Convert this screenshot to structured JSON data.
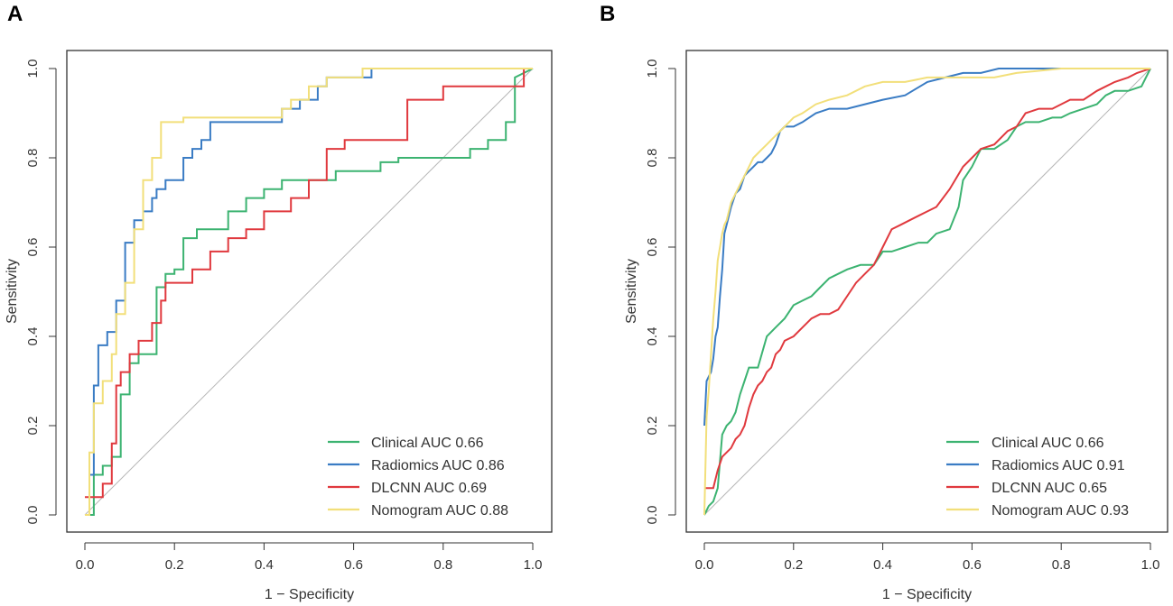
{
  "chart_data": [
    {
      "panel_label": "A",
      "type": "line",
      "title": "",
      "xlabel": "1 − Specificity",
      "ylabel": "Sensitivity",
      "xlim": [
        0,
        1
      ],
      "ylim": [
        0,
        1
      ],
      "xticks": [
        "0.0",
        "0.2",
        "0.4",
        "0.6",
        "0.8",
        "1.0"
      ],
      "yticks": [
        "0.0",
        "0.2",
        "0.4",
        "0.6",
        "0.8",
        "1.0"
      ],
      "grid": false,
      "legend_position": "bottom-right",
      "diagonal_reference": true,
      "series": [
        {
          "name": "Clinical",
          "label": "Clinical AUC 0.66",
          "color": "#3cb371",
          "x": [
            0,
            0.02,
            0.02,
            0.04,
            0.04,
            0.06,
            0.06,
            0.08,
            0.08,
            0.1,
            0.1,
            0.12,
            0.12,
            0.16,
            0.16,
            0.18,
            0.18,
            0.2,
            0.2,
            0.22,
            0.22,
            0.25,
            0.25,
            0.32,
            0.32,
            0.36,
            0.36,
            0.4,
            0.4,
            0.44,
            0.44,
            0.52,
            0.52,
            0.56,
            0.56,
            0.66,
            0.66,
            0.7,
            0.7,
            0.86,
            0.86,
            0.9,
            0.9,
            0.94,
            0.94,
            0.96,
            0.96,
            1.0
          ],
          "y": [
            0,
            0,
            0.09,
            0.09,
            0.11,
            0.11,
            0.13,
            0.13,
            0.27,
            0.27,
            0.34,
            0.34,
            0.36,
            0.36,
            0.51,
            0.51,
            0.54,
            0.54,
            0.55,
            0.55,
            0.62,
            0.62,
            0.64,
            0.64,
            0.68,
            0.68,
            0.71,
            0.71,
            0.73,
            0.73,
            0.75,
            0.75,
            0.75,
            0.75,
            0.77,
            0.77,
            0.79,
            0.79,
            0.8,
            0.8,
            0.82,
            0.82,
            0.84,
            0.84,
            0.88,
            0.88,
            0.98,
            1.0
          ]
        },
        {
          "name": "Radiomics",
          "label": "Radiomics AUC 0.86",
          "color": "#3a7cc4",
          "x": [
            0,
            0.01,
            0.01,
            0.02,
            0.02,
            0.03,
            0.03,
            0.05,
            0.05,
            0.07,
            0.07,
            0.09,
            0.09,
            0.11,
            0.11,
            0.13,
            0.13,
            0.15,
            0.15,
            0.16,
            0.16,
            0.18,
            0.18,
            0.2,
            0.2,
            0.22,
            0.22,
            0.24,
            0.24,
            0.26,
            0.26,
            0.28,
            0.28,
            0.3,
            0.3,
            0.44,
            0.44,
            0.48,
            0.48,
            0.52,
            0.52,
            0.54,
            0.54,
            0.56,
            0.56,
            0.64,
            0.64,
            1.0
          ],
          "y": [
            0,
            0,
            0.09,
            0.09,
            0.29,
            0.29,
            0.38,
            0.38,
            0.41,
            0.41,
            0.48,
            0.48,
            0.61,
            0.61,
            0.66,
            0.66,
            0.68,
            0.68,
            0.71,
            0.71,
            0.73,
            0.73,
            0.75,
            0.75,
            0.75,
            0.75,
            0.8,
            0.8,
            0.82,
            0.82,
            0.84,
            0.84,
            0.88,
            0.88,
            0.88,
            0.88,
            0.91,
            0.91,
            0.93,
            0.93,
            0.96,
            0.96,
            0.98,
            0.98,
            0.98,
            0.98,
            1.0,
            1.0
          ]
        },
        {
          "name": "DLCNN",
          "label": "DLCNN AUC 0.69",
          "color": "#e0393e",
          "x": [
            0,
            0.04,
            0.04,
            0.06,
            0.06,
            0.07,
            0.07,
            0.08,
            0.08,
            0.1,
            0.1,
            0.12,
            0.12,
            0.15,
            0.15,
            0.17,
            0.17,
            0.18,
            0.18,
            0.2,
            0.2,
            0.24,
            0.24,
            0.28,
            0.28,
            0.32,
            0.32,
            0.36,
            0.36,
            0.4,
            0.4,
            0.46,
            0.46,
            0.5,
            0.5,
            0.54,
            0.54,
            0.58,
            0.58,
            0.66,
            0.66,
            0.72,
            0.72,
            0.8,
            0.8,
            0.86,
            0.86,
            0.92,
            0.92,
            0.98,
            0.98,
            1.0
          ],
          "y": [
            0.04,
            0.04,
            0.07,
            0.07,
            0.16,
            0.16,
            0.29,
            0.29,
            0.32,
            0.32,
            0.36,
            0.36,
            0.39,
            0.39,
            0.43,
            0.43,
            0.48,
            0.48,
            0.52,
            0.52,
            0.52,
            0.52,
            0.55,
            0.55,
            0.59,
            0.59,
            0.62,
            0.62,
            0.64,
            0.64,
            0.68,
            0.68,
            0.71,
            0.71,
            0.75,
            0.75,
            0.82,
            0.82,
            0.84,
            0.84,
            0.84,
            0.84,
            0.93,
            0.93,
            0.96,
            0.96,
            0.96,
            0.96,
            0.96,
            0.96,
            1.0,
            1.0
          ]
        },
        {
          "name": "Nomogram",
          "label": "Nomogram AUC 0.88",
          "color": "#f2df7a",
          "x": [
            0,
            0.01,
            0.01,
            0.02,
            0.02,
            0.04,
            0.04,
            0.06,
            0.06,
            0.07,
            0.07,
            0.09,
            0.09,
            0.11,
            0.11,
            0.13,
            0.13,
            0.15,
            0.15,
            0.17,
            0.17,
            0.22,
            0.22,
            0.44,
            0.44,
            0.46,
            0.46,
            0.5,
            0.5,
            0.54,
            0.54,
            0.62,
            0.62,
            1.0
          ],
          "y": [
            0,
            0,
            0.14,
            0.14,
            0.25,
            0.25,
            0.3,
            0.3,
            0.36,
            0.36,
            0.45,
            0.45,
            0.52,
            0.52,
            0.64,
            0.64,
            0.75,
            0.75,
            0.8,
            0.8,
            0.88,
            0.88,
            0.89,
            0.89,
            0.91,
            0.91,
            0.93,
            0.93,
            0.96,
            0.96,
            0.98,
            0.98,
            1.0,
            1.0
          ]
        }
      ]
    },
    {
      "panel_label": "B",
      "type": "line",
      "title": "",
      "xlabel": "1 − Specificity",
      "ylabel": "Sensitivity",
      "xlim": [
        0,
        1
      ],
      "ylim": [
        0,
        1
      ],
      "xticks": [
        "0.0",
        "0.2",
        "0.4",
        "0.6",
        "0.8",
        "1.0"
      ],
      "yticks": [
        "0.0",
        "0.2",
        "0.4",
        "0.6",
        "0.8",
        "1.0"
      ],
      "grid": false,
      "legend_position": "bottom-right",
      "diagonal_reference": true,
      "series": [
        {
          "name": "Clinical",
          "label": "Clinical AUC 0.66",
          "color": "#3cb371",
          "x": [
            0,
            0.01,
            0.02,
            0.03,
            0.04,
            0.05,
            0.06,
            0.07,
            0.08,
            0.09,
            0.1,
            0.12,
            0.14,
            0.16,
            0.18,
            0.2,
            0.22,
            0.24,
            0.26,
            0.28,
            0.3,
            0.32,
            0.35,
            0.38,
            0.4,
            0.42,
            0.45,
            0.48,
            0.5,
            0.52,
            0.55,
            0.57,
            0.58,
            0.6,
            0.62,
            0.65,
            0.68,
            0.7,
            0.72,
            0.75,
            0.78,
            0.8,
            0.82,
            0.85,
            0.88,
            0.9,
            0.92,
            0.95,
            0.98,
            1.0
          ],
          "y": [
            0,
            0.02,
            0.03,
            0.06,
            0.18,
            0.2,
            0.21,
            0.23,
            0.27,
            0.3,
            0.33,
            0.33,
            0.4,
            0.42,
            0.44,
            0.47,
            0.48,
            0.49,
            0.51,
            0.53,
            0.54,
            0.55,
            0.56,
            0.56,
            0.59,
            0.59,
            0.6,
            0.61,
            0.61,
            0.63,
            0.64,
            0.69,
            0.75,
            0.78,
            0.82,
            0.82,
            0.84,
            0.87,
            0.88,
            0.88,
            0.89,
            0.89,
            0.9,
            0.91,
            0.92,
            0.94,
            0.95,
            0.95,
            0.96,
            1.0
          ]
        },
        {
          "name": "Radiomics",
          "label": "Radiomics AUC 0.91",
          "color": "#3a7cc4",
          "x": [
            0,
            0.005,
            0.01,
            0.015,
            0.02,
            0.025,
            0.03,
            0.035,
            0.04,
            0.045,
            0.05,
            0.06,
            0.07,
            0.08,
            0.09,
            0.1,
            0.11,
            0.12,
            0.13,
            0.14,
            0.15,
            0.16,
            0.17,
            0.18,
            0.2,
            0.22,
            0.25,
            0.28,
            0.32,
            0.36,
            0.4,
            0.45,
            0.5,
            0.54,
            0.58,
            0.62,
            0.66,
            0.7,
            0.8,
            1.0
          ],
          "y": [
            0.2,
            0.3,
            0.31,
            0.32,
            0.35,
            0.4,
            0.42,
            0.49,
            0.55,
            0.63,
            0.65,
            0.69,
            0.72,
            0.73,
            0.76,
            0.77,
            0.78,
            0.79,
            0.79,
            0.8,
            0.81,
            0.83,
            0.86,
            0.87,
            0.87,
            0.88,
            0.9,
            0.91,
            0.91,
            0.92,
            0.93,
            0.94,
            0.97,
            0.98,
            0.99,
            0.99,
            1.0,
            1.0,
            1.0,
            1.0
          ]
        },
        {
          "name": "DLCNN",
          "label": "DLCNN AUC 0.65",
          "color": "#e0393e",
          "x": [
            0,
            0.02,
            0.03,
            0.04,
            0.05,
            0.06,
            0.07,
            0.08,
            0.09,
            0.1,
            0.11,
            0.12,
            0.13,
            0.14,
            0.15,
            0.16,
            0.17,
            0.18,
            0.2,
            0.22,
            0.24,
            0.26,
            0.28,
            0.3,
            0.32,
            0.34,
            0.36,
            0.38,
            0.4,
            0.42,
            0.44,
            0.46,
            0.48,
            0.5,
            0.52,
            0.55,
            0.58,
            0.6,
            0.62,
            0.65,
            0.68,
            0.7,
            0.72,
            0.75,
            0.78,
            0.8,
            0.82,
            0.85,
            0.88,
            0.9,
            0.92,
            0.95,
            0.97,
            1.0
          ],
          "y": [
            0.06,
            0.06,
            0.1,
            0.13,
            0.14,
            0.15,
            0.17,
            0.18,
            0.2,
            0.24,
            0.27,
            0.29,
            0.3,
            0.32,
            0.33,
            0.36,
            0.37,
            0.39,
            0.4,
            0.42,
            0.44,
            0.45,
            0.45,
            0.46,
            0.49,
            0.52,
            0.54,
            0.56,
            0.6,
            0.64,
            0.65,
            0.66,
            0.67,
            0.68,
            0.69,
            0.73,
            0.78,
            0.8,
            0.82,
            0.83,
            0.86,
            0.87,
            0.9,
            0.91,
            0.91,
            0.92,
            0.93,
            0.93,
            0.95,
            0.96,
            0.97,
            0.98,
            0.99,
            1.0
          ]
        },
        {
          "name": "Nomogram",
          "label": "Nomogram AUC 0.93",
          "color": "#f2df7a",
          "x": [
            0,
            0.005,
            0.01,
            0.015,
            0.02,
            0.025,
            0.03,
            0.035,
            0.04,
            0.045,
            0.05,
            0.06,
            0.07,
            0.08,
            0.09,
            0.1,
            0.11,
            0.12,
            0.13,
            0.14,
            0.15,
            0.16,
            0.17,
            0.18,
            0.2,
            0.22,
            0.25,
            0.28,
            0.32,
            0.36,
            0.4,
            0.45,
            0.5,
            0.55,
            0.6,
            0.65,
            0.7,
            0.8,
            0.9,
            1.0
          ],
          "y": [
            0,
            0.22,
            0.28,
            0.36,
            0.44,
            0.5,
            0.57,
            0.6,
            0.63,
            0.65,
            0.66,
            0.7,
            0.72,
            0.74,
            0.76,
            0.78,
            0.8,
            0.81,
            0.82,
            0.83,
            0.84,
            0.85,
            0.86,
            0.87,
            0.89,
            0.9,
            0.92,
            0.93,
            0.94,
            0.96,
            0.97,
            0.97,
            0.98,
            0.98,
            0.98,
            0.98,
            0.99,
            1.0,
            1.0,
            1.0
          ]
        }
      ]
    }
  ]
}
